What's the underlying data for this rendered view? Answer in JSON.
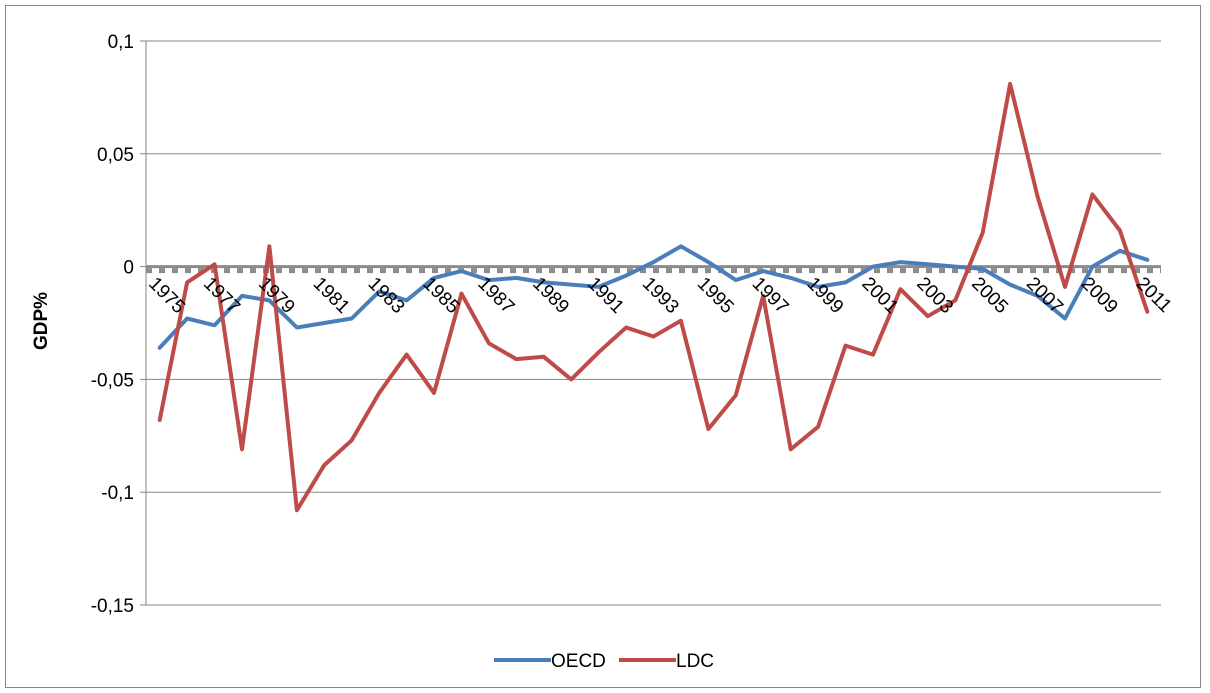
{
  "chart_data": {
    "type": "line",
    "title": "",
    "xlabel": "",
    "ylabel": "GDP%",
    "ylim": [
      -0.15,
      0.1
    ],
    "yticks": [
      0.1,
      0.05,
      0,
      -0.05,
      -0.1,
      -0.15
    ],
    "ytick_labels": [
      "0,1",
      "0,05",
      "0",
      "-0,05",
      "-0,1",
      "-0,15"
    ],
    "x": [
      1975,
      1976,
      1977,
      1978,
      1979,
      1980,
      1981,
      1982,
      1983,
      1984,
      1985,
      1986,
      1987,
      1988,
      1989,
      1990,
      1991,
      1992,
      1993,
      1994,
      1995,
      1996,
      1997,
      1998,
      1999,
      2000,
      2001,
      2002,
      2003,
      2004,
      2005,
      2006,
      2007,
      2008,
      2009,
      2010,
      2011
    ],
    "xtick_labels": [
      "1975",
      "1977",
      "1979",
      "1981",
      "1983",
      "1985",
      "1987",
      "1989",
      "1991",
      "1993",
      "1995",
      "1997",
      "1999",
      "2001",
      "2003",
      "2005",
      "2007",
      "2009",
      "2011"
    ],
    "grid": true,
    "zero_line": "dashed-gray",
    "legend": "bottom",
    "series": [
      {
        "name": "OECD",
        "color": "#4a7ebb",
        "values": [
          -0.036,
          -0.023,
          -0.026,
          -0.013,
          -0.015,
          -0.027,
          -0.025,
          -0.023,
          -0.011,
          -0.015,
          -0.005,
          -0.002,
          -0.006,
          -0.005,
          -0.007,
          -0.008,
          -0.009,
          -0.004,
          0.002,
          0.009,
          0.002,
          -0.006,
          -0.002,
          -0.005,
          -0.009,
          -0.007,
          0.0,
          0.002,
          0.001,
          0.0,
          -0.001,
          -0.008,
          -0.013,
          -0.023,
          0.0,
          0.007,
          0.003
        ]
      },
      {
        "name": "LDC",
        "color": "#be4b48",
        "values": [
          -0.068,
          -0.007,
          0.001,
          -0.081,
          0.009,
          -0.108,
          -0.088,
          -0.077,
          -0.056,
          -0.039,
          -0.056,
          -0.012,
          -0.034,
          -0.041,
          -0.04,
          -0.05,
          -0.038,
          -0.027,
          -0.031,
          -0.024,
          -0.072,
          -0.057,
          -0.013,
          -0.081,
          -0.071,
          -0.035,
          -0.039,
          -0.01,
          -0.022,
          -0.015,
          0.015,
          0.081,
          0.031,
          -0.009,
          0.032,
          0.016,
          -0.02
        ]
      }
    ]
  }
}
